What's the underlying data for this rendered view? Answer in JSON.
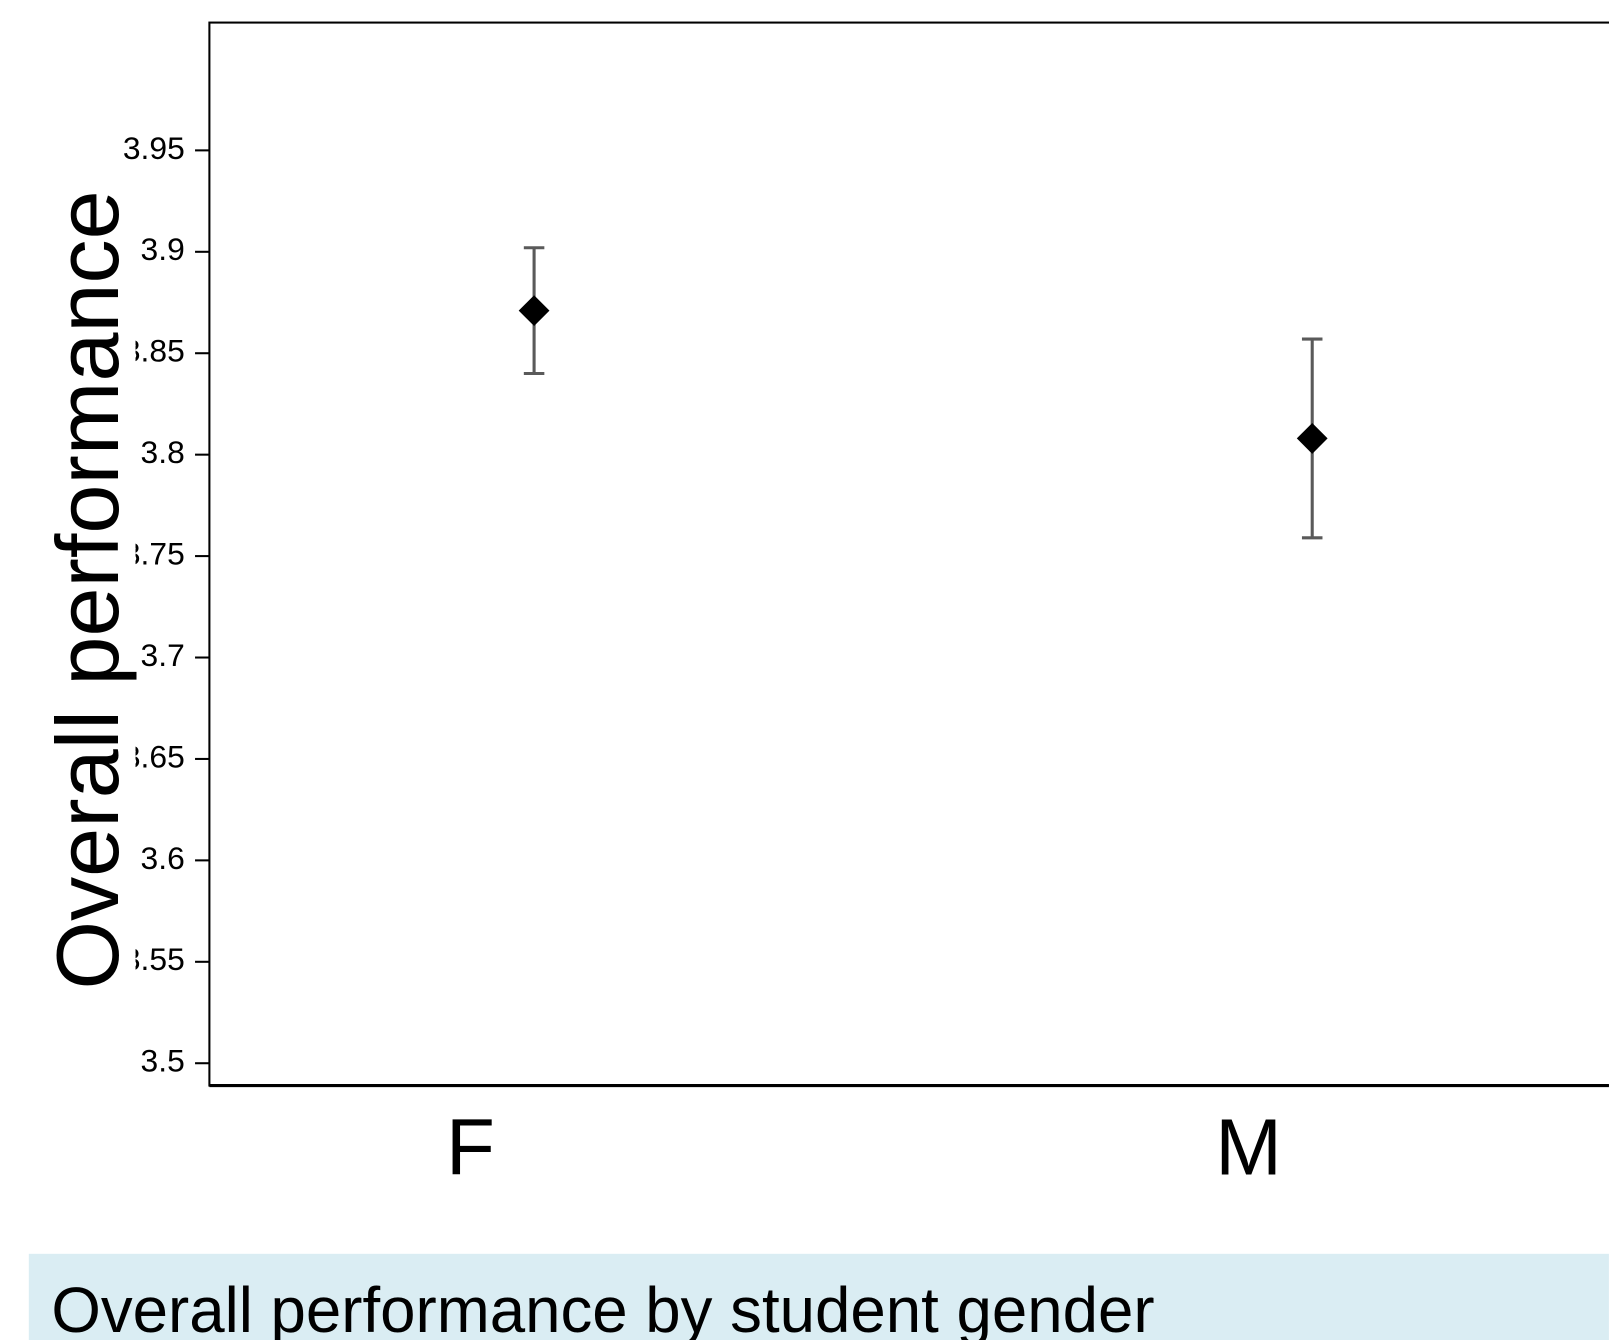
{
  "chart_data": {
    "type": "errorbar",
    "y_label": "Overall performance",
    "caption": "Overall performance by student gender",
    "categories": [
      "F",
      "M"
    ],
    "values": [
      3.871,
      3.808
    ],
    "errors": [
      0.031,
      0.049
    ],
    "color": "#000000",
    "error_color": "#5a5a5a",
    "ylim": [
      3.489,
      4.013
    ],
    "yticks": [
      3.5,
      3.55,
      3.6,
      3.65,
      3.7,
      3.75,
      3.8,
      3.85,
      3.9,
      3.95
    ],
    "grid": false
  }
}
